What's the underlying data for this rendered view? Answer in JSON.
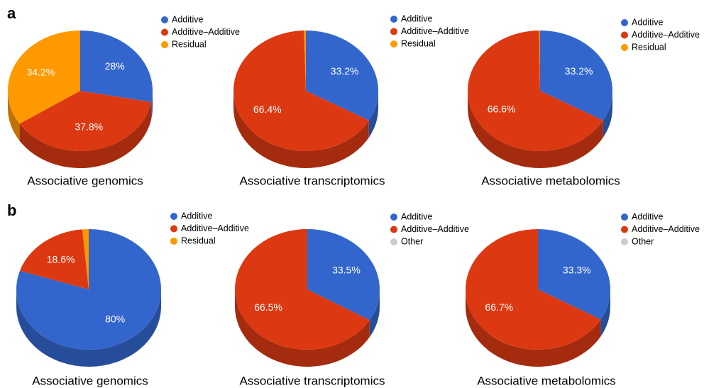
{
  "panel_labels": [
    "a",
    "b"
  ],
  "chart_data": [
    {
      "type": "pie",
      "title": "Associative genomics",
      "categories": [
        "Additive",
        "Additive–Additive",
        "Residual"
      ],
      "colors": [
        "#3366cc",
        "#dc3912",
        "#ff9900"
      ],
      "values": [
        28,
        37.8,
        34.2
      ],
      "value_labels": [
        "28%",
        "37.8%",
        "34.2%"
      ]
    },
    {
      "type": "pie",
      "title": "Associative transcriptomics",
      "categories": [
        "Additive",
        "Additive–Additive",
        "Residual"
      ],
      "colors": [
        "#3366cc",
        "#dc3912",
        "#ff9900"
      ],
      "values": [
        33.2,
        66.4,
        0.4
      ],
      "value_labels": [
        "33.2%",
        "66.4%",
        null
      ]
    },
    {
      "type": "pie",
      "title": "Associative metabolomics",
      "categories": [
        "Additive",
        "Additive–Additive",
        "Residual"
      ],
      "colors": [
        "#3366cc",
        "#dc3912",
        "#ff9900"
      ],
      "values": [
        33.2,
        66.6,
        0.2
      ],
      "value_labels": [
        "33.2%",
        "66.6%",
        null
      ]
    },
    {
      "type": "pie",
      "title": "Associative genomics",
      "categories": [
        "Additive",
        "Additive–Additive",
        "Residual"
      ],
      "colors": [
        "#3366cc",
        "#dc3912",
        "#ff9900"
      ],
      "values": [
        80,
        18.6,
        1.4
      ],
      "value_labels": [
        "80%",
        "18.6%",
        null
      ]
    },
    {
      "type": "pie",
      "title": "Associative transcriptomics",
      "categories": [
        "Additive",
        "Additive–Additive",
        "Other"
      ],
      "colors": [
        "#3366cc",
        "#dc3912",
        "#cccccc"
      ],
      "values": [
        33.5,
        66.5,
        0
      ],
      "value_labels": [
        "33.5%",
        "66.5%",
        null
      ]
    },
    {
      "type": "pie",
      "title": "Associative metabolomics",
      "categories": [
        "Additive",
        "Additive–Additive",
        "Other"
      ],
      "colors": [
        "#3366cc",
        "#dc3912",
        "#cccccc"
      ],
      "values": [
        33.3,
        66.7,
        0
      ],
      "value_labels": [
        "33.3%",
        "66.7%",
        null
      ]
    }
  ]
}
